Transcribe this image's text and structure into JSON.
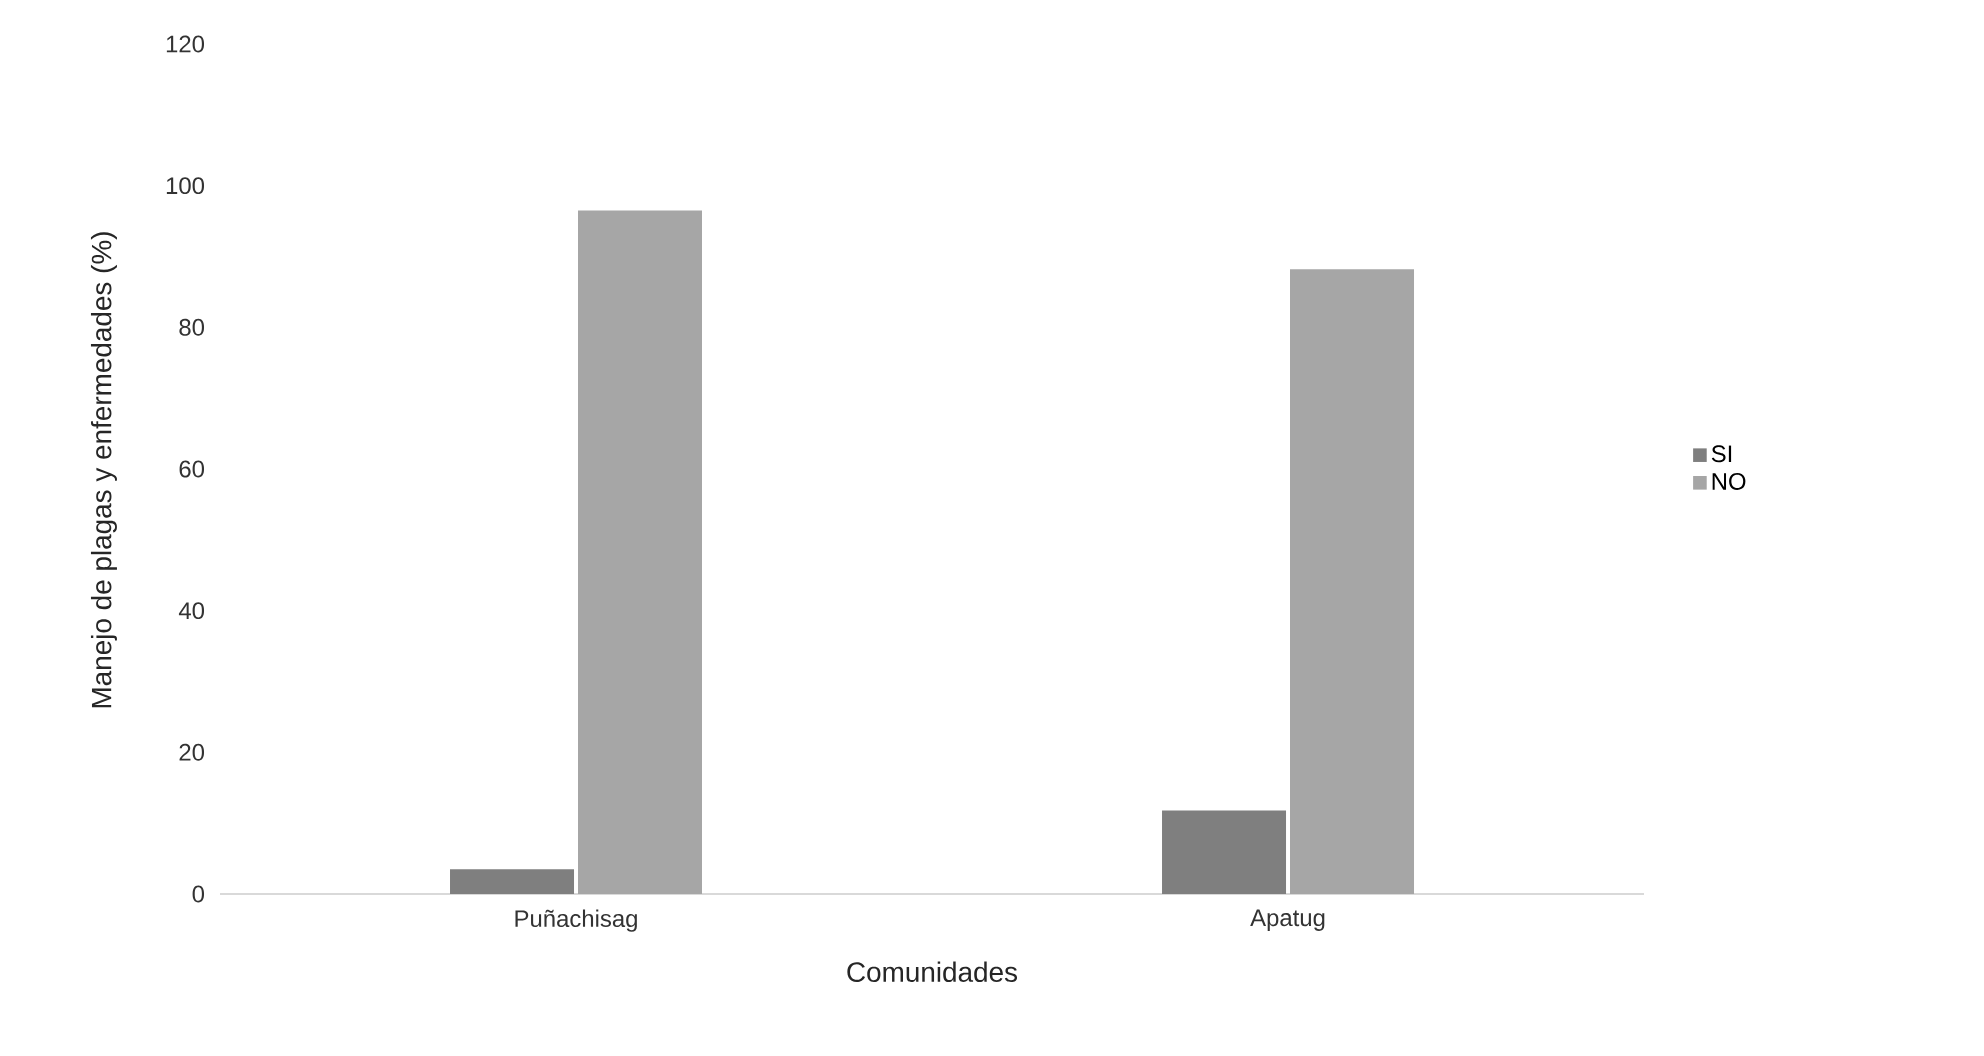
{
  "chart_data": {
    "type": "bar",
    "xlabel": "Comunidades",
    "ylabel": "Manejo de plagas y enfermedades (%)",
    "categories": [
      "Puñachisag",
      "Apatug"
    ],
    "series": [
      {
        "name": "SI",
        "color": "#7f7f7f",
        "values": [
          3.5,
          11.8
        ]
      },
      {
        "name": "NO",
        "color": "#a6a6a6",
        "values": [
          96.5,
          88.2
        ]
      }
    ],
    "ylim": [
      0,
      120
    ],
    "yticks": [
      0,
      20,
      40,
      60,
      80,
      100,
      120
    ],
    "legend": "right"
  }
}
